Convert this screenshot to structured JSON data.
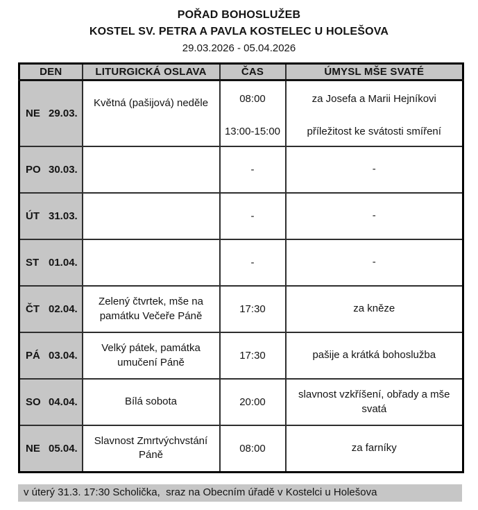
{
  "page": {
    "title": "POŘAD BOHOSLUŽEB",
    "subtitle": "KOSTEL SV. PETRA A PAVLA KOSTELEC U HOLEŠOVA",
    "date_range": "29.03.2026 - 05.04.2026"
  },
  "table": {
    "columns": {
      "day": "DEN",
      "celebration": "LITURGICKÁ OSLAVA",
      "time": "ČAS",
      "intention": "ÚMYSL MŠE SVATÉ"
    },
    "rows": [
      {
        "day": "NE",
        "date": "29.03.",
        "celebration": "Květná (pašijová) neděle",
        "time1": "08:00",
        "time2": "13:00-15:00",
        "intention1": "za Josefa a Marii Hejníkovi",
        "intention2": "příležitost ke svátosti smíření"
      },
      {
        "day": "PO",
        "date": "30.03.",
        "celebration": "",
        "time": "-",
        "intention": "-"
      },
      {
        "day": "ÚT",
        "date": "31.03.",
        "celebration": "",
        "time": "-",
        "intention": "-"
      },
      {
        "day": "ST",
        "date": "01.04.",
        "celebration": "",
        "time": "-",
        "intention": "-"
      },
      {
        "day": "ČT",
        "date": "02.04.",
        "celebration": "Zelený čtvrtek, mše na památku Večeře Páně",
        "time": "17:30",
        "intention": "za kněze"
      },
      {
        "day": "PÁ",
        "date": "03.04.",
        "celebration": "Velký pátek, památka umučení Páně",
        "time": "17:30",
        "intention": "pašije a krátká bohoslužba"
      },
      {
        "day": "SO",
        "date": "04.04.",
        "celebration": "Bílá sobota",
        "time": "20:00",
        "intention": "slavnost vzkříšení, obřady a mše svatá"
      },
      {
        "day": "NE",
        "date": "05.04.",
        "celebration": "Slavnost Zmrtvýchvstání Páně",
        "time": "08:00",
        "intention": "za farníky"
      }
    ]
  },
  "footer": {
    "note": "v úterý 31.3. 17:30 Scholička,  sraz na Obecním úřadě v Kostelci u Holešova"
  },
  "colors": {
    "cell_gray": "#c6c6c6",
    "border_outer": "#000000",
    "border_inner": "#2e2e2e",
    "text": "#141414",
    "background": "#ffffff"
  }
}
